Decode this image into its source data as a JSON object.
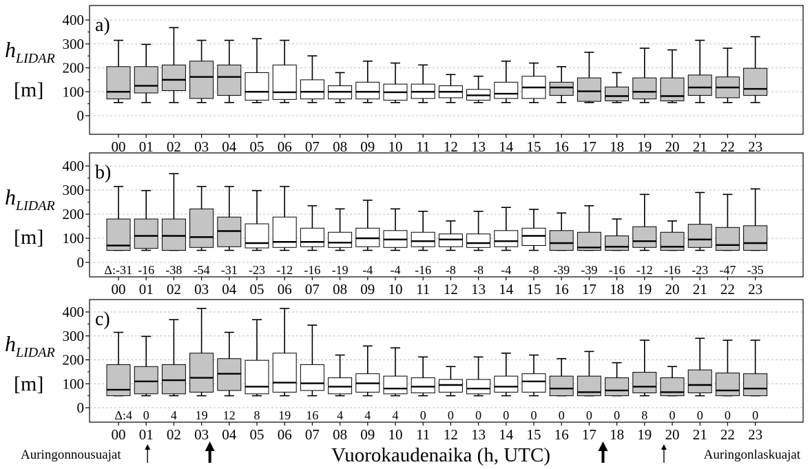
{
  "chart_data": {
    "type": "box",
    "xlabel": "Vuorokaudenaika (h, UTC)",
    "ylabel_main": "h",
    "ylabel_sub": "LIDAR",
    "ylabel_unit": "[m]",
    "ylim": [
      -40,
      440
    ],
    "yticks": [
      0,
      100,
      200,
      300,
      400
    ],
    "grid": "horizontal dotted",
    "categories": [
      "00",
      "01",
      "02",
      "03",
      "04",
      "05",
      "06",
      "07",
      "08",
      "09",
      "10",
      "11",
      "12",
      "13",
      "14",
      "15",
      "16",
      "17",
      "18",
      "19",
      "20",
      "21",
      "22",
      "23"
    ],
    "panels": [
      {
        "label": "a)",
        "delta_prefix": "",
        "deltas": [],
        "boxes": [
          {
            "min": 55,
            "q1": 70,
            "median": 100,
            "q3": 205,
            "max": 315,
            "shaded": true
          },
          {
            "min": 55,
            "q1": 95,
            "median": 125,
            "q3": 205,
            "max": 298,
            "shaded": true
          },
          {
            "min": 55,
            "q1": 105,
            "median": 150,
            "q3": 212,
            "max": 368,
            "shaded": true
          },
          {
            "min": 55,
            "q1": 72,
            "median": 162,
            "q3": 228,
            "max": 315,
            "shaded": true
          },
          {
            "min": 55,
            "q1": 85,
            "median": 162,
            "q3": 212,
            "max": 315,
            "shaded": true
          },
          {
            "min": 55,
            "q1": 65,
            "median": 100,
            "q3": 180,
            "max": 322,
            "shaded": false
          },
          {
            "min": 55,
            "q1": 68,
            "median": 98,
            "q3": 212,
            "max": 315,
            "shaded": false
          },
          {
            "min": 55,
            "q1": 70,
            "median": 100,
            "q3": 150,
            "max": 250,
            "shaded": false
          },
          {
            "min": 55,
            "q1": 70,
            "median": 100,
            "q3": 125,
            "max": 180,
            "shaded": false
          },
          {
            "min": 55,
            "q1": 70,
            "median": 100,
            "q3": 140,
            "max": 228,
            "shaded": false
          },
          {
            "min": 55,
            "q1": 65,
            "median": 98,
            "q3": 132,
            "max": 220,
            "shaded": false
          },
          {
            "min": 55,
            "q1": 72,
            "median": 100,
            "q3": 132,
            "max": 212,
            "shaded": false
          },
          {
            "min": 55,
            "q1": 75,
            "median": 100,
            "q3": 125,
            "max": 172,
            "shaded": false
          },
          {
            "min": 55,
            "q1": 65,
            "median": 85,
            "q3": 110,
            "max": 165,
            "shaded": false
          },
          {
            "min": 55,
            "q1": 72,
            "median": 92,
            "q3": 140,
            "max": 228,
            "shaded": false
          },
          {
            "min": 55,
            "q1": 72,
            "median": 118,
            "q3": 165,
            "max": 220,
            "shaded": false
          },
          {
            "min": 55,
            "q1": 85,
            "median": 118,
            "q3": 140,
            "max": 205,
            "shaded": true
          },
          {
            "min": 55,
            "q1": 60,
            "median": 102,
            "q3": 158,
            "max": 265,
            "shaded": true
          },
          {
            "min": 55,
            "q1": 62,
            "median": 82,
            "q3": 120,
            "max": 180,
            "shaded": true
          },
          {
            "min": 55,
            "q1": 70,
            "median": 100,
            "q3": 158,
            "max": 282,
            "shaded": true
          },
          {
            "min": 55,
            "q1": 62,
            "median": 82,
            "q3": 158,
            "max": 275,
            "shaded": true
          },
          {
            "min": 55,
            "q1": 85,
            "median": 118,
            "q3": 170,
            "max": 315,
            "shaded": true
          },
          {
            "min": 55,
            "q1": 75,
            "median": 118,
            "q3": 162,
            "max": 282,
            "shaded": true
          },
          {
            "min": 55,
            "q1": 85,
            "median": 112,
            "q3": 198,
            "max": 330,
            "shaded": true
          }
        ]
      },
      {
        "label": "b)",
        "delta_prefix": "Δ:",
        "deltas": [
          "-31",
          "-16",
          "-38",
          "-54",
          "-31",
          "-23",
          "-12",
          "-16",
          "-19",
          "-4",
          "-4",
          "-16",
          "-8",
          "-8",
          "-4",
          "-8",
          "-39",
          "-39",
          "-16",
          "-12",
          "-16",
          "-23",
          "-47",
          "-35"
        ],
        "boxes": [
          {
            "min": 50,
            "q1": 50,
            "median": 70,
            "q3": 180,
            "max": 315,
            "shaded": true
          },
          {
            "min": 50,
            "q1": 58,
            "median": 110,
            "q3": 180,
            "max": 298,
            "shaded": true
          },
          {
            "min": 50,
            "q1": 50,
            "median": 110,
            "q3": 180,
            "max": 368,
            "shaded": true
          },
          {
            "min": 50,
            "q1": 62,
            "median": 105,
            "q3": 222,
            "max": 315,
            "shaded": true
          },
          {
            "min": 50,
            "q1": 65,
            "median": 130,
            "q3": 188,
            "max": 315,
            "shaded": true
          },
          {
            "min": 50,
            "q1": 60,
            "median": 80,
            "q3": 160,
            "max": 298,
            "shaded": false
          },
          {
            "min": 50,
            "q1": 62,
            "median": 85,
            "q3": 188,
            "max": 315,
            "shaded": false
          },
          {
            "min": 50,
            "q1": 65,
            "median": 85,
            "q3": 142,
            "max": 235,
            "shaded": false
          },
          {
            "min": 50,
            "q1": 62,
            "median": 82,
            "q3": 125,
            "max": 222,
            "shaded": false
          },
          {
            "min": 50,
            "q1": 65,
            "median": 100,
            "q3": 142,
            "max": 258,
            "shaded": false
          },
          {
            "min": 50,
            "q1": 62,
            "median": 95,
            "q3": 132,
            "max": 222,
            "shaded": false
          },
          {
            "min": 50,
            "q1": 65,
            "median": 88,
            "q3": 125,
            "max": 212,
            "shaded": false
          },
          {
            "min": 50,
            "q1": 65,
            "median": 95,
            "q3": 118,
            "max": 172,
            "shaded": false
          },
          {
            "min": 50,
            "q1": 62,
            "median": 80,
            "q3": 118,
            "max": 212,
            "shaded": false
          },
          {
            "min": 50,
            "q1": 65,
            "median": 88,
            "q3": 132,
            "max": 228,
            "shaded": false
          },
          {
            "min": 50,
            "q1": 70,
            "median": 110,
            "q3": 142,
            "max": 220,
            "shaded": false
          },
          {
            "min": 50,
            "q1": 50,
            "median": 80,
            "q3": 132,
            "max": 205,
            "shaded": true
          },
          {
            "min": 50,
            "q1": 50,
            "median": 62,
            "q3": 125,
            "max": 235,
            "shaded": true
          },
          {
            "min": 50,
            "q1": 50,
            "median": 65,
            "q3": 110,
            "max": 180,
            "shaded": true
          },
          {
            "min": 50,
            "q1": 62,
            "median": 88,
            "q3": 148,
            "max": 282,
            "shaded": true
          },
          {
            "min": 50,
            "q1": 50,
            "median": 65,
            "q3": 125,
            "max": 172,
            "shaded": true
          },
          {
            "min": 50,
            "q1": 62,
            "median": 95,
            "q3": 158,
            "max": 290,
            "shaded": true
          },
          {
            "min": 50,
            "q1": 50,
            "median": 72,
            "q3": 145,
            "max": 282,
            "shaded": true
          },
          {
            "min": 50,
            "q1": 50,
            "median": 80,
            "q3": 152,
            "max": 305,
            "shaded": true
          }
        ]
      },
      {
        "label": "c)",
        "delta_prefix": "Δ:",
        "deltas": [
          "4",
          "0",
          "4",
          "19",
          "12",
          "8",
          "19",
          "16",
          "4",
          "4",
          "4",
          "0",
          "0",
          "0",
          "0",
          "0",
          "0",
          "0",
          "0",
          "8",
          "0",
          "0",
          "0",
          "0"
        ],
        "boxes": [
          {
            "min": 50,
            "q1": 50,
            "median": 75,
            "q3": 180,
            "max": 315,
            "shaded": true
          },
          {
            "min": 50,
            "q1": 58,
            "median": 110,
            "q3": 172,
            "max": 298,
            "shaded": true
          },
          {
            "min": 50,
            "q1": 58,
            "median": 115,
            "q3": 180,
            "max": 368,
            "shaded": true
          },
          {
            "min": 50,
            "q1": 65,
            "median": 125,
            "q3": 228,
            "max": 415,
            "shaded": true
          },
          {
            "min": 50,
            "q1": 72,
            "median": 142,
            "q3": 205,
            "max": 315,
            "shaded": true
          },
          {
            "min": 50,
            "q1": 58,
            "median": 88,
            "q3": 198,
            "max": 368,
            "shaded": false
          },
          {
            "min": 50,
            "q1": 65,
            "median": 105,
            "q3": 228,
            "max": 415,
            "shaded": false
          },
          {
            "min": 50,
            "q1": 72,
            "median": 102,
            "q3": 180,
            "max": 345,
            "shaded": false
          },
          {
            "min": 50,
            "q1": 58,
            "median": 88,
            "q3": 125,
            "max": 220,
            "shaded": false
          },
          {
            "min": 50,
            "q1": 65,
            "median": 102,
            "q3": 142,
            "max": 258,
            "shaded": false
          },
          {
            "min": 50,
            "q1": 58,
            "median": 80,
            "q3": 132,
            "max": 250,
            "shaded": false
          },
          {
            "min": 50,
            "q1": 62,
            "median": 88,
            "q3": 125,
            "max": 212,
            "shaded": false
          },
          {
            "min": 50,
            "q1": 65,
            "median": 95,
            "q3": 118,
            "max": 172,
            "shaded": false
          },
          {
            "min": 50,
            "q1": 58,
            "median": 80,
            "q3": 118,
            "max": 212,
            "shaded": false
          },
          {
            "min": 50,
            "q1": 65,
            "median": 88,
            "q3": 132,
            "max": 228,
            "shaded": false
          },
          {
            "min": 50,
            "q1": 65,
            "median": 110,
            "q3": 142,
            "max": 220,
            "shaded": false
          },
          {
            "min": 50,
            "q1": 50,
            "median": 80,
            "q3": 132,
            "max": 205,
            "shaded": true
          },
          {
            "min": 50,
            "q1": 50,
            "median": 65,
            "q3": 132,
            "max": 235,
            "shaded": true
          },
          {
            "min": 50,
            "q1": 50,
            "median": 72,
            "q3": 125,
            "max": 188,
            "shaded": true
          },
          {
            "min": 50,
            "q1": 62,
            "median": 88,
            "q3": 148,
            "max": 282,
            "shaded": true
          },
          {
            "min": 50,
            "q1": 50,
            "median": 65,
            "q3": 125,
            "max": 172,
            "shaded": true
          },
          {
            "min": 50,
            "q1": 62,
            "median": 95,
            "q3": 158,
            "max": 290,
            "shaded": true
          },
          {
            "min": 50,
            "q1": 50,
            "median": 72,
            "q3": 145,
            "max": 282,
            "shaded": true
          },
          {
            "min": 50,
            "q1": 50,
            "median": 80,
            "q3": 142,
            "max": 282,
            "shaded": true
          }
        ]
      }
    ],
    "annotations": {
      "sunrise_label": "Auringonnousuajat",
      "sunset_label": "Auringonlaskuajat",
      "arrows": [
        {
          "hour": 1.05,
          "style": "thin"
        },
        {
          "hour": 3.3,
          "style": "bold"
        },
        {
          "hour": 17.5,
          "style": "bold"
        },
        {
          "hour": 19.7,
          "style": "thin"
        }
      ]
    },
    "colors": {
      "shaded_fill": "#c4c4c4",
      "open_fill": "#ffffff",
      "stroke": "#000000",
      "grid": "#bdbdbd"
    }
  }
}
